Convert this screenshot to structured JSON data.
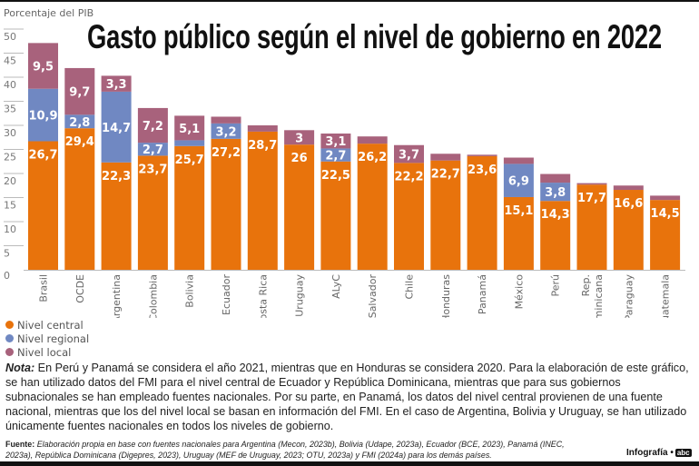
{
  "chart_data": {
    "type": "bar",
    "stacked": true,
    "title": "Gasto público según el nivel de gobierno en 2022",
    "ylabel": "Porcentaje del PIB",
    "ylim": [
      0,
      50
    ],
    "yticks": [
      0,
      5,
      10,
      15,
      20,
      25,
      30,
      35,
      40,
      45,
      50
    ],
    "grid": false,
    "legend_position": "bottom-left",
    "categories": [
      "Brasil",
      "OCDE",
      "Argentina",
      "Colombia",
      "Bolivia",
      "Ecuador",
      "Costa Rica",
      "Uruguay",
      "ALyC",
      "El Salvador",
      "Chile",
      "Honduras",
      "Panamá",
      "México",
      "Perú",
      "Rep. Dominicana",
      "Paraguay",
      "Guatemala"
    ],
    "series": [
      {
        "name": "Nivel central",
        "color": "#e8730c",
        "values": [
          26.7,
          29.4,
          22.3,
          23.7,
          25.7,
          27.2,
          28.7,
          26,
          22.5,
          26.2,
          22.2,
          22.7,
          23.6,
          15.1,
          14.3,
          17.7,
          16.6,
          14.5
        ]
      },
      {
        "name": "Nivel regional",
        "color": "#7088c2",
        "values": [
          10.9,
          2.8,
          14.7,
          2.7,
          1.2,
          3.2,
          0,
          0,
          2.7,
          0,
          0,
          0,
          0,
          6.9,
          3.8,
          0,
          0,
          0
        ]
      },
      {
        "name": "Nivel local",
        "color": "#a8627c",
        "values": [
          9.5,
          9.7,
          3.3,
          7.2,
          5.1,
          1.4,
          1.3,
          3,
          3.1,
          1.5,
          3.7,
          1.4,
          0.3,
          1.3,
          1.8,
          0.3,
          0.9,
          0.9
        ]
      }
    ]
  },
  "legend": [
    "Nivel central",
    "Nivel regional",
    "Nivel local"
  ],
  "note": {
    "label": "Nota:",
    "text": " En Perú y Panamá se considera el año 2021, mientras que en Honduras se considera 2020. Para la elaboración de este gráfico, se han utilizado datos del FMI para el nivel central de Ecuador y República Dominicana, mientras que para sus gobiernos subnacionales se han empleado fuentes nacionales. Por su parte, en Panamá, los datos del nivel central provienen de una fuente nacional, mientras que los del nivel local se basan en información del FMI. En el caso de Argentina, Bolivia y Uruguay, se han utilizado únicamente fuentes nacionales en todos los niveles de gobierno."
  },
  "source": {
    "label": "Fuente:",
    "text": " Elaboración propia en base con fuentes nacionales para Argentina (Mecon, 2023b), Bolivia (Udape, 2023a), Ecuador (BCE, 2023), Panamá (INEC, 2023a), República Dominicana (Digepres, 2023), Uruguay (MEF de Uruguay, 2023; OTU, 2023a) y FMI (2024a) para los demás países."
  },
  "credit": {
    "label": "Infografía •",
    "logo": "abc"
  }
}
